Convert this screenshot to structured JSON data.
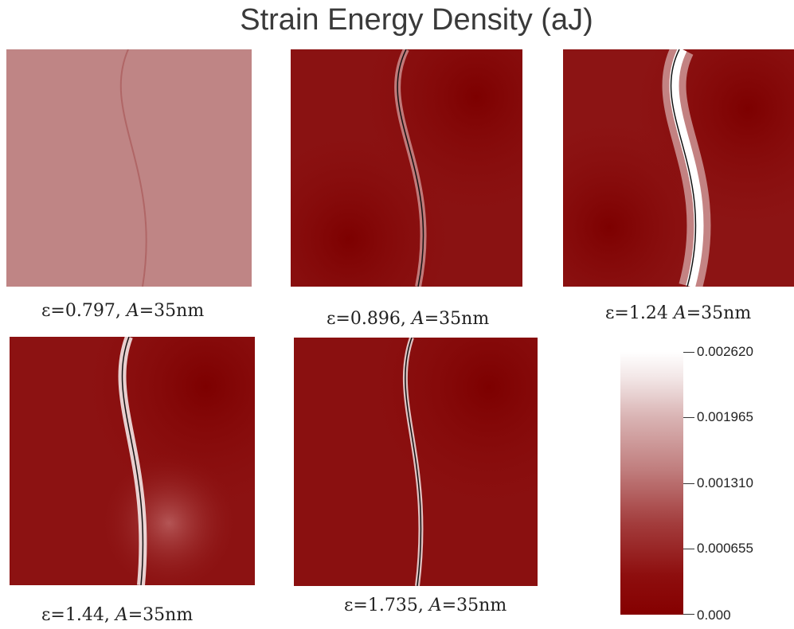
{
  "title": "Strain Energy Density (aJ)",
  "panels": [
    {
      "eps": "0.797,",
      "amp": "35nm",
      "sep": "="
    },
    {
      "eps": "0.896,",
      "amp": "35nm",
      "sep": "="
    },
    {
      "eps": "1.24",
      "amp": "35nm",
      "sep": "="
    },
    {
      "eps": "1.44,",
      "amp": "35nm",
      "sep": "="
    },
    {
      "eps": "1.735,",
      "amp": "35nm",
      "sep": "="
    }
  ],
  "symbols": {
    "epsilon": "ε",
    "equals": "=",
    "A": "A"
  },
  "colorbar": {
    "ticks": [
      "0.002620",
      "0.001965",
      "0.001310",
      "0.000655",
      "0.000"
    ],
    "colors": {
      "min": "#850000",
      "max": "#ffffff"
    }
  }
}
